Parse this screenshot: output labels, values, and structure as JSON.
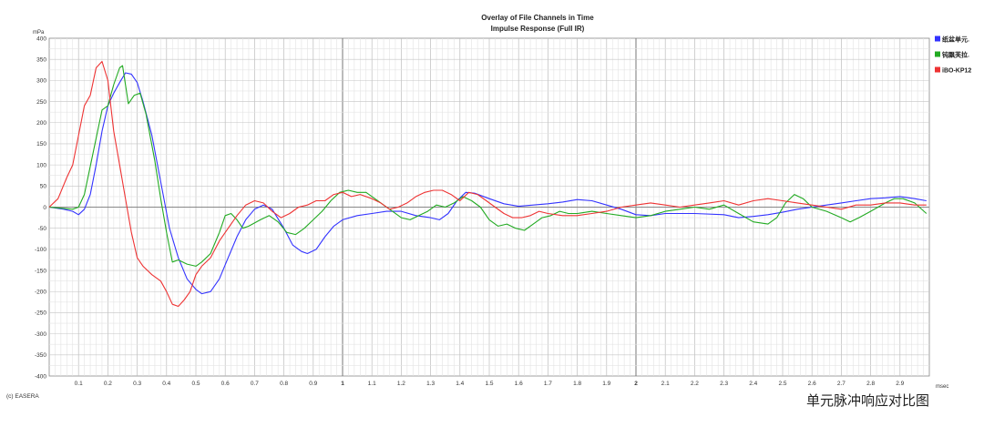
{
  "chart_data": {
    "type": "line",
    "title": "Overlay of File Channels in Time",
    "subtitle": "Impulse Response (Full IR)",
    "ylabel": "mPa",
    "xlabel": "msec",
    "xlim": [
      0,
      3.0
    ],
    "ylim": [
      -400,
      400
    ],
    "x_ticks": [
      "0.1",
      "0.2",
      "0.3",
      "0.4",
      "0.5",
      "0.6",
      "0.7",
      "0.8",
      "0.9",
      "1",
      "1.1",
      "1.2",
      "1.3",
      "1.4",
      "1.5",
      "1.6",
      "1.7",
      "1.8",
      "1.9",
      "2",
      "2.1",
      "2.2",
      "2.3",
      "2.4",
      "2.5",
      "2.6",
      "2.7",
      "2.8",
      "2.9"
    ],
    "x_bold_ticks": [
      "1",
      "2"
    ],
    "y_ticks": [
      400,
      350,
      300,
      250,
      200,
      150,
      100,
      50,
      0,
      -50,
      -100,
      -150,
      -200,
      -250,
      -300,
      -350,
      -400
    ],
    "grid": true,
    "legend_position": "right",
    "series": [
      {
        "name": "纸盆单元.",
        "color": "#3333ff",
        "points": [
          [
            0,
            0
          ],
          [
            0.05,
            -5
          ],
          [
            0.08,
            -10
          ],
          [
            0.1,
            -18
          ],
          [
            0.12,
            -5
          ],
          [
            0.14,
            30
          ],
          [
            0.16,
            100
          ],
          [
            0.18,
            180
          ],
          [
            0.2,
            240
          ],
          [
            0.22,
            270
          ],
          [
            0.24,
            295
          ],
          [
            0.26,
            318
          ],
          [
            0.28,
            315
          ],
          [
            0.3,
            295
          ],
          [
            0.32,
            250
          ],
          [
            0.35,
            170
          ],
          [
            0.38,
            60
          ],
          [
            0.41,
            -50
          ],
          [
            0.44,
            -120
          ],
          [
            0.47,
            -170
          ],
          [
            0.5,
            -195
          ],
          [
            0.52,
            -205
          ],
          [
            0.55,
            -200
          ],
          [
            0.58,
            -170
          ],
          [
            0.61,
            -120
          ],
          [
            0.64,
            -70
          ],
          [
            0.67,
            -30
          ],
          [
            0.7,
            -5
          ],
          [
            0.73,
            5
          ],
          [
            0.76,
            -5
          ],
          [
            0.8,
            -50
          ],
          [
            0.83,
            -90
          ],
          [
            0.86,
            -105
          ],
          [
            0.88,
            -110
          ],
          [
            0.91,
            -100
          ],
          [
            0.94,
            -70
          ],
          [
            0.97,
            -45
          ],
          [
            1.0,
            -30
          ],
          [
            1.05,
            -20
          ],
          [
            1.1,
            -15
          ],
          [
            1.15,
            -10
          ],
          [
            1.2,
            -10
          ],
          [
            1.25,
            -20
          ],
          [
            1.3,
            -25
          ],
          [
            1.33,
            -30
          ],
          [
            1.36,
            -15
          ],
          [
            1.39,
            15
          ],
          [
            1.42,
            35
          ],
          [
            1.45,
            33
          ],
          [
            1.5,
            20
          ],
          [
            1.55,
            8
          ],
          [
            1.6,
            2
          ],
          [
            1.65,
            5
          ],
          [
            1.7,
            8
          ],
          [
            1.75,
            12
          ],
          [
            1.8,
            18
          ],
          [
            1.85,
            15
          ],
          [
            1.9,
            5
          ],
          [
            1.95,
            -5
          ],
          [
            2.0,
            -18
          ],
          [
            2.05,
            -20
          ],
          [
            2.1,
            -15
          ],
          [
            2.2,
            -15
          ],
          [
            2.3,
            -18
          ],
          [
            2.35,
            -25
          ],
          [
            2.4,
            -22
          ],
          [
            2.45,
            -18
          ],
          [
            2.5,
            -12
          ],
          [
            2.55,
            -5
          ],
          [
            2.6,
            0
          ],
          [
            2.65,
            5
          ],
          [
            2.7,
            10
          ],
          [
            2.75,
            15
          ],
          [
            2.8,
            20
          ],
          [
            2.85,
            22
          ],
          [
            2.9,
            25
          ],
          [
            2.95,
            20
          ],
          [
            2.99,
            15
          ]
        ]
      },
      {
        "name": "钝飘芙拉.",
        "color": "#22aa22",
        "points": [
          [
            0,
            0
          ],
          [
            0.05,
            -3
          ],
          [
            0.08,
            -5
          ],
          [
            0.1,
            0
          ],
          [
            0.12,
            30
          ],
          [
            0.15,
            130
          ],
          [
            0.18,
            230
          ],
          [
            0.2,
            240
          ],
          [
            0.22,
            290
          ],
          [
            0.24,
            330
          ],
          [
            0.25,
            335
          ],
          [
            0.27,
            245
          ],
          [
            0.29,
            265
          ],
          [
            0.31,
            270
          ],
          [
            0.33,
            220
          ],
          [
            0.36,
            110
          ],
          [
            0.38,
            20
          ],
          [
            0.4,
            -60
          ],
          [
            0.42,
            -130
          ],
          [
            0.44,
            -125
          ],
          [
            0.47,
            -135
          ],
          [
            0.5,
            -140
          ],
          [
            0.52,
            -130
          ],
          [
            0.55,
            -110
          ],
          [
            0.58,
            -60
          ],
          [
            0.6,
            -20
          ],
          [
            0.62,
            -15
          ],
          [
            0.64,
            -30
          ],
          [
            0.66,
            -50
          ],
          [
            0.68,
            -45
          ],
          [
            0.72,
            -30
          ],
          [
            0.75,
            -20
          ],
          [
            0.78,
            -35
          ],
          [
            0.81,
            -60
          ],
          [
            0.84,
            -65
          ],
          [
            0.87,
            -50
          ],
          [
            0.9,
            -30
          ],
          [
            0.93,
            -10
          ],
          [
            0.96,
            15
          ],
          [
            0.99,
            35
          ],
          [
            1.02,
            40
          ],
          [
            1.05,
            35
          ],
          [
            1.08,
            35
          ],
          [
            1.11,
            20
          ],
          [
            1.14,
            5
          ],
          [
            1.17,
            -10
          ],
          [
            1.2,
            -25
          ],
          [
            1.23,
            -30
          ],
          [
            1.26,
            -20
          ],
          [
            1.29,
            -10
          ],
          [
            1.32,
            5
          ],
          [
            1.35,
            0
          ],
          [
            1.38,
            10
          ],
          [
            1.41,
            25
          ],
          [
            1.44,
            15
          ],
          [
            1.47,
            0
          ],
          [
            1.5,
            -30
          ],
          [
            1.53,
            -45
          ],
          [
            1.56,
            -40
          ],
          [
            1.59,
            -50
          ],
          [
            1.62,
            -55
          ],
          [
            1.65,
            -40
          ],
          [
            1.68,
            -25
          ],
          [
            1.71,
            -20
          ],
          [
            1.74,
            -10
          ],
          [
            1.77,
            -15
          ],
          [
            1.8,
            -15
          ],
          [
            1.85,
            -10
          ],
          [
            1.9,
            -15
          ],
          [
            1.95,
            -20
          ],
          [
            2.0,
            -25
          ],
          [
            2.05,
            -20
          ],
          [
            2.1,
            -10
          ],
          [
            2.15,
            -5
          ],
          [
            2.2,
            0
          ],
          [
            2.25,
            -5
          ],
          [
            2.3,
            5
          ],
          [
            2.35,
            -15
          ],
          [
            2.4,
            -35
          ],
          [
            2.45,
            -40
          ],
          [
            2.48,
            -25
          ],
          [
            2.51,
            10
          ],
          [
            2.54,
            30
          ],
          [
            2.57,
            20
          ],
          [
            2.6,
            0
          ],
          [
            2.65,
            -10
          ],
          [
            2.7,
            -25
          ],
          [
            2.73,
            -35
          ],
          [
            2.76,
            -25
          ],
          [
            2.8,
            -10
          ],
          [
            2.85,
            10
          ],
          [
            2.88,
            20
          ],
          [
            2.91,
            20
          ],
          [
            2.95,
            10
          ],
          [
            2.99,
            -15
          ]
        ]
      },
      {
        "name": "iBO-KP12",
        "color": "#ee3333",
        "points": [
          [
            0,
            0
          ],
          [
            0.03,
            20
          ],
          [
            0.06,
            70
          ],
          [
            0.08,
            100
          ],
          [
            0.1,
            170
          ],
          [
            0.12,
            240
          ],
          [
            0.14,
            265
          ],
          [
            0.16,
            330
          ],
          [
            0.18,
            345
          ],
          [
            0.2,
            300
          ],
          [
            0.22,
            180
          ],
          [
            0.24,
            100
          ],
          [
            0.26,
            20
          ],
          [
            0.28,
            -60
          ],
          [
            0.3,
            -120
          ],
          [
            0.32,
            -140
          ],
          [
            0.35,
            -160
          ],
          [
            0.38,
            -175
          ],
          [
            0.4,
            -200
          ],
          [
            0.42,
            -230
          ],
          [
            0.44,
            -235
          ],
          [
            0.46,
            -220
          ],
          [
            0.48,
            -200
          ],
          [
            0.5,
            -160
          ],
          [
            0.52,
            -140
          ],
          [
            0.55,
            -120
          ],
          [
            0.58,
            -80
          ],
          [
            0.61,
            -50
          ],
          [
            0.64,
            -20
          ],
          [
            0.67,
            5
          ],
          [
            0.7,
            15
          ],
          [
            0.73,
            10
          ],
          [
            0.76,
            -10
          ],
          [
            0.79,
            -25
          ],
          [
            0.82,
            -15
          ],
          [
            0.85,
            0
          ],
          [
            0.88,
            5
          ],
          [
            0.91,
            15
          ],
          [
            0.94,
            15
          ],
          [
            0.97,
            30
          ],
          [
            1.0,
            35
          ],
          [
            1.03,
            25
          ],
          [
            1.06,
            30
          ],
          [
            1.1,
            20
          ],
          [
            1.13,
            10
          ],
          [
            1.16,
            -5
          ],
          [
            1.19,
            0
          ],
          [
            1.22,
            10
          ],
          [
            1.25,
            25
          ],
          [
            1.28,
            35
          ],
          [
            1.31,
            40
          ],
          [
            1.34,
            40
          ],
          [
            1.37,
            30
          ],
          [
            1.4,
            15
          ],
          [
            1.43,
            35
          ],
          [
            1.46,
            30
          ],
          [
            1.49,
            15
          ],
          [
            1.52,
            0
          ],
          [
            1.55,
            -15
          ],
          [
            1.58,
            -25
          ],
          [
            1.61,
            -25
          ],
          [
            1.64,
            -20
          ],
          [
            1.67,
            -10
          ],
          [
            1.7,
            -15
          ],
          [
            1.75,
            -20
          ],
          [
            1.8,
            -20
          ],
          [
            1.85,
            -15
          ],
          [
            1.9,
            -10
          ],
          [
            1.95,
            0
          ],
          [
            2.0,
            5
          ],
          [
            2.05,
            10
          ],
          [
            2.1,
            5
          ],
          [
            2.15,
            0
          ],
          [
            2.2,
            5
          ],
          [
            2.25,
            10
          ],
          [
            2.3,
            15
          ],
          [
            2.35,
            5
          ],
          [
            2.4,
            15
          ],
          [
            2.45,
            20
          ],
          [
            2.5,
            15
          ],
          [
            2.55,
            10
          ],
          [
            2.6,
            5
          ],
          [
            2.65,
            0
          ],
          [
            2.7,
            -5
          ],
          [
            2.75,
            5
          ],
          [
            2.8,
            5
          ],
          [
            2.85,
            10
          ],
          [
            2.9,
            10
          ],
          [
            2.95,
            5
          ],
          [
            2.99,
            5
          ]
        ]
      }
    ]
  },
  "footer": {
    "copyright": "(c) EASERA",
    "caption": "单元脉冲响应对比图"
  }
}
